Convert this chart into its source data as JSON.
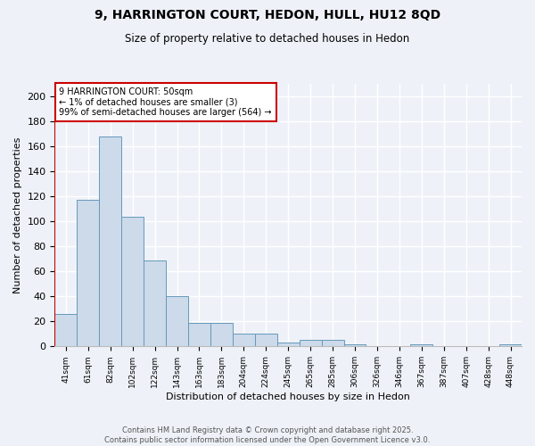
{
  "title_line1": "9, HARRINGTON COURT, HEDON, HULL, HU12 8QD",
  "title_line2": "Size of property relative to detached houses in Hedon",
  "xlabel": "Distribution of detached houses by size in Hedon",
  "ylabel": "Number of detached properties",
  "categories": [
    "41sqm",
    "61sqm",
    "82sqm",
    "102sqm",
    "122sqm",
    "143sqm",
    "163sqm",
    "183sqm",
    "204sqm",
    "224sqm",
    "245sqm",
    "265sqm",
    "285sqm",
    "306sqm",
    "326sqm",
    "346sqm",
    "367sqm",
    "387sqm",
    "407sqm",
    "428sqm",
    "448sqm"
  ],
  "values": [
    26,
    117,
    168,
    104,
    69,
    40,
    19,
    19,
    10,
    10,
    3,
    5,
    5,
    2,
    0,
    0,
    2,
    0,
    0,
    0,
    2
  ],
  "bar_color": "#ccdaea",
  "bar_edge_color": "#6699bb",
  "annotation_text": "9 HARRINGTON COURT: 50sqm\n← 1% of detached houses are smaller (3)\n99% of semi-detached houses are larger (564) →",
  "annotation_box_color": "#ffffff",
  "annotation_border_color": "#cc0000",
  "ylim": [
    0,
    210
  ],
  "yticks": [
    0,
    20,
    40,
    60,
    80,
    100,
    120,
    140,
    160,
    180,
    200
  ],
  "footer_text": "Contains HM Land Registry data © Crown copyright and database right 2025.\nContains public sector information licensed under the Open Government Licence v3.0.",
  "background_color": "#eef2f8",
  "grid_color": "#ffffff",
  "red_line_color": "#cc0000",
  "fig_width": 6.0,
  "fig_height": 5.0,
  "dpi": 100
}
